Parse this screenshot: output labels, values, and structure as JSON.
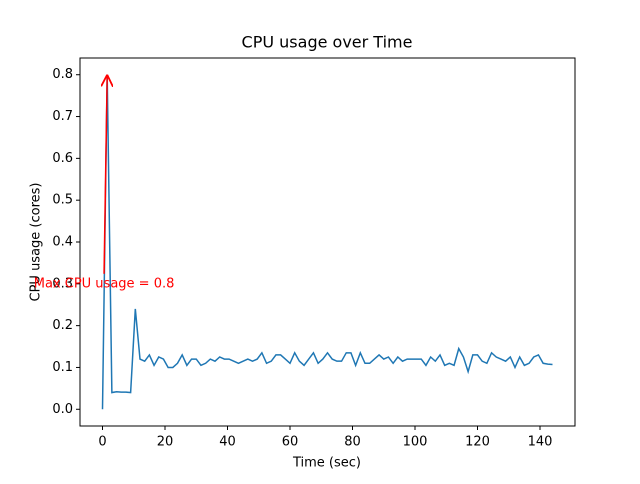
{
  "chart_data": {
    "type": "line",
    "title": "CPU usage over Time",
    "xlabel": "Time (sec)",
    "ylabel": "CPU usage (cores)",
    "x": [
      0,
      1.5,
      3,
      4.5,
      6,
      7.5,
      9,
      10.5,
      12,
      13.5,
      15,
      16.5,
      18,
      19.5,
      21,
      22.5,
      24,
      25.5,
      27,
      28.5,
      30,
      31.5,
      33,
      34.5,
      36,
      37.5,
      39,
      40.5,
      42,
      43.5,
      45,
      46.5,
      48,
      49.5,
      51,
      52.5,
      54,
      55.5,
      57,
      58.5,
      60,
      61.5,
      63,
      64.5,
      66,
      67.5,
      69,
      70.5,
      72,
      73.5,
      75,
      76.5,
      78,
      79.5,
      81,
      82.5,
      84,
      85.5,
      87,
      88.5,
      90,
      91.5,
      93,
      94.5,
      96,
      97.5,
      99,
      100.5,
      102,
      103.5,
      105,
      106.5,
      108,
      109.5,
      111,
      112.5,
      114,
      115.5,
      117,
      118.5,
      120,
      121.5,
      123,
      124.5,
      126,
      127.5,
      129,
      130.5,
      132,
      133.5,
      135,
      136.5,
      138,
      139.5,
      141,
      142.5,
      144
    ],
    "series": [
      {
        "name": "CPU usage",
        "color": "#1f77b4",
        "values": [
          0,
          0.8,
          0.04,
          0.042,
          0.041,
          0.041,
          0.04,
          0.24,
          0.12,
          0.115,
          0.13,
          0.105,
          0.125,
          0.12,
          0.1,
          0.1,
          0.11,
          0.13,
          0.105,
          0.12,
          0.12,
          0.105,
          0.11,
          0.12,
          0.115,
          0.125,
          0.12,
          0.12,
          0.115,
          0.11,
          0.115,
          0.12,
          0.115,
          0.12,
          0.135,
          0.11,
          0.115,
          0.13,
          0.13,
          0.12,
          0.11,
          0.135,
          0.115,
          0.105,
          0.12,
          0.135,
          0.11,
          0.12,
          0.135,
          0.12,
          0.115,
          0.115,
          0.135,
          0.135,
          0.105,
          0.135,
          0.11,
          0.11,
          0.12,
          0.13,
          0.12,
          0.125,
          0.11,
          0.125,
          0.115,
          0.12,
          0.12,
          0.12,
          0.12,
          0.105,
          0.125,
          0.115,
          0.13,
          0.105,
          0.11,
          0.105,
          0.145,
          0.125,
          0.09,
          0.13,
          0.13,
          0.115,
          0.11,
          0.135,
          0.125,
          0.12,
          0.115,
          0.125,
          0.1,
          0.125,
          0.105,
          0.11,
          0.125,
          0.13,
          0.11,
          0.108,
          0.107
        ]
      }
    ],
    "xlim": [
      -7.2,
      151.2
    ],
    "ylim": [
      -0.04,
      0.84
    ],
    "xticks": [
      0,
      20,
      40,
      60,
      80,
      100,
      120,
      140
    ],
    "yticks": [
      {
        "value": 0,
        "label": "0.0"
      },
      0.1,
      0.2,
      0.3,
      0.4,
      0.5,
      0.6,
      0.7,
      0.8
    ],
    "annotation": {
      "text": "Max CPU usage = 0.8",
      "xy": [
        1.5,
        0.8
      ],
      "xytext": [
        0.5,
        0.3
      ],
      "color": "#ff0000"
    }
  }
}
